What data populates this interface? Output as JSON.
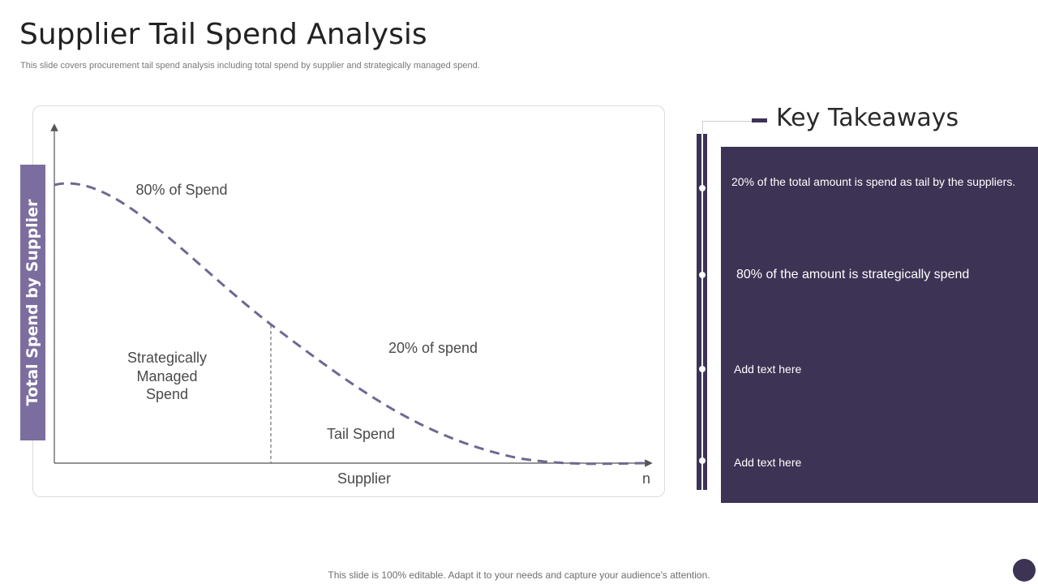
{
  "header": {
    "title": "Supplier Tail Spend Analysis",
    "subtitle": "This slide covers procurement tail spend analysis including total spend by supplier and strategically managed spend."
  },
  "diagram": {
    "y_axis_label": "Total Spend by Supplier",
    "x_axis_label": "Supplier",
    "x_axis_end_label": "n",
    "label_top_spend": "80% of Spend",
    "label_tail_percent": "20% of spend",
    "label_strategic_lines": [
      "Strategically",
      "Managed",
      "Spend"
    ],
    "label_tail_spend": "Tail Spend"
  },
  "takeaways": {
    "title": "Key Takeaways",
    "items": [
      "20% of the total amount is spend as tail by the suppliers.",
      "80% of the amount is strategically spend",
      "Add text here",
      "Add text here"
    ]
  },
  "footer": {
    "text": "This slide is 100% editable. Adapt it to your needs and capture your audience's attention."
  },
  "colors": {
    "accent": "#3d3354",
    "label_box": "#7b6e9f",
    "curve": "#6e6891"
  }
}
